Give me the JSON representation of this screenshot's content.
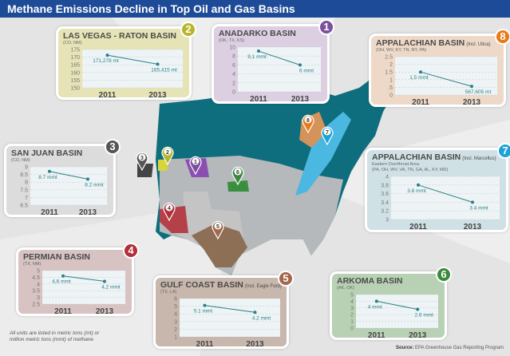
{
  "title": "Methane Emissions Decline in Top Oil and Gas Basins",
  "note": "All units are listed in metric tons (mt) or million metric tons (mmt) of methane",
  "source_label": "Source:",
  "source_text": "EPA Greenhouse Gas Reporting Program",
  "colors": {
    "line": "#2a7f8a",
    "plot_bg": "#eef4f5",
    "title_bar": "#1e4b97"
  },
  "chart_data": [
    {
      "type": "line",
      "number": "1",
      "title": "ANADARKO BASIN",
      "title_note": "",
      "subtitle": "(OK, TX, KS)",
      "subtitle2": "",
      "categories": [
        "2011",
        "2013"
      ],
      "values": [
        9.1,
        6
      ],
      "labels": [
        "9,1 mmt",
        "6 mmt"
      ],
      "ylim": [
        0,
        10
      ],
      "yticks": [
        "0",
        "2",
        "4",
        "6",
        "8",
        "10"
      ],
      "bg": "#dccfe2",
      "badge": "#7b4f9e"
    },
    {
      "type": "line",
      "number": "2",
      "title": "LAS VEGAS - RATON BASIN",
      "title_note": "",
      "subtitle": "(CO, NM)",
      "subtitle2": "",
      "categories": [
        "2011",
        "2013"
      ],
      "values": [
        171278,
        165415
      ],
      "labels": [
        "171,278 mt",
        "165,415 mt"
      ],
      "ylim": [
        150000,
        175000
      ],
      "yticks": [
        "150",
        "155",
        "160",
        "165",
        "170",
        "175"
      ],
      "bg": "#e6e4b6",
      "badge": "#b7b62a"
    },
    {
      "type": "line",
      "number": "3",
      "title": "SAN JUAN BASIN",
      "title_note": "",
      "subtitle": "(CO, NM)",
      "subtitle2": "",
      "categories": [
        "2011",
        "2013"
      ],
      "values": [
        8.7,
        8.2
      ],
      "labels": [
        "8.7 mmt",
        "8.2 mmt"
      ],
      "ylim": [
        6.5,
        9
      ],
      "yticks": [
        "6.5",
        "7",
        "7.5",
        "8",
        "8.5",
        "9"
      ],
      "bg": "#dcdcdc",
      "badge": "#555555"
    },
    {
      "type": "line",
      "number": "4",
      "title": "PERMIAN BASIN",
      "title_note": "",
      "subtitle": "(TX, NM)",
      "subtitle2": "",
      "categories": [
        "2011",
        "2013"
      ],
      "values": [
        4.6,
        4.2
      ],
      "labels": [
        "4,6 mmt",
        "4,2 mmt"
      ],
      "ylim": [
        2.5,
        5
      ],
      "yticks": [
        "2.5",
        "3",
        "3.5",
        "4",
        "4.5",
        "5"
      ],
      "bg": "#d8c3c3",
      "badge": "#b02f38"
    },
    {
      "type": "line",
      "number": "5",
      "title": "GULF COAST BASIN",
      "title_note": "(Incl. Eagle Ford)",
      "subtitle": "(TX, LA)",
      "subtitle2": "",
      "categories": [
        "2011",
        "2013"
      ],
      "values": [
        5.1,
        4.2
      ],
      "labels": [
        "5.1 mmt",
        "4.2 mmt"
      ],
      "ylim": [
        1,
        6
      ],
      "yticks": [
        "1",
        "2",
        "3",
        "4",
        "5",
        "6"
      ],
      "bg": "#c8b7ad",
      "badge": "#a4674a"
    },
    {
      "type": "line",
      "number": "6",
      "title": "ARKOMA BASIN",
      "title_note": "",
      "subtitle": "(AK, OK)",
      "subtitle2": "",
      "categories": [
        "2011",
        "2013"
      ],
      "values": [
        4,
        2.8
      ],
      "labels": [
        "4 mmt",
        "2.8 mmt"
      ],
      "ylim": [
        0,
        5
      ],
      "yticks": [
        "0",
        "1",
        "2",
        "3",
        "4",
        "5"
      ],
      "bg": "#b8d1b4",
      "badge": "#3a8a3d"
    },
    {
      "type": "line",
      "number": "7",
      "title": "APPALACHIAN BASIN",
      "title_note": "(Incl. Marcellus)",
      "subtitle": "Eastern Overthrust Area",
      "subtitle2": "(PA, OH, WV, VA, TN, GA, AL, KY, MD)",
      "categories": [
        "2011",
        "2013"
      ],
      "values": [
        3.8,
        3.4
      ],
      "labels": [
        "3.8 mmt",
        "3.4 mmt"
      ],
      "ylim": [
        3,
        4
      ],
      "yticks": [
        "3",
        "3.2",
        "3.4",
        "3.6",
        "3.8",
        "4"
      ],
      "bg": "#d0e1e5",
      "badge": "#1ca3d6"
    },
    {
      "type": "line",
      "number": "8",
      "title": "APPALACHIAN BASIN",
      "title_note": "(Incl. Utica)",
      "subtitle": "(OH, WV, KY, TN, NY, PA)",
      "subtitle2": "",
      "categories": [
        "2011",
        "2013"
      ],
      "values": [
        1.5,
        0.567605
      ],
      "labels": [
        "1,5 mmt",
        "567,605 mt"
      ],
      "ylim": [
        0,
        2.5
      ],
      "yticks": [
        "0",
        ".5",
        "1",
        "1.5",
        "2",
        "2.5"
      ],
      "bg": "#eed9c8",
      "badge": "#e97a1c"
    }
  ]
}
